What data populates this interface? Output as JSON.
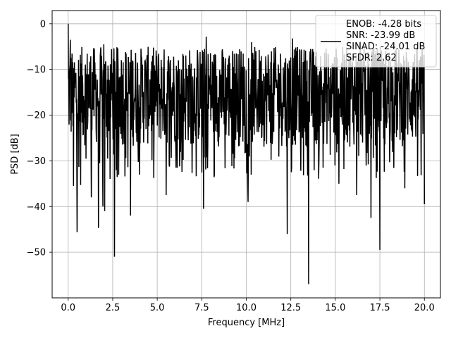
{
  "chart_data": {
    "type": "line",
    "xlabel": "Frequency [MHz]",
    "ylabel": "PSD [dB]",
    "xlim": [
      -0.9,
      20.9
    ],
    "ylim": [
      -60,
      2.9
    ],
    "x_ticks": [
      0.0,
      2.5,
      5.0,
      7.5,
      10.0,
      12.5,
      15.0,
      17.5,
      20.0
    ],
    "x_tick_labels": [
      "0.0",
      "2.5",
      "5.0",
      "7.5",
      "10.0",
      "12.5",
      "15.0",
      "17.5",
      "20.0"
    ],
    "y_ticks": [
      0,
      -10,
      -20,
      -30,
      -40,
      -50
    ],
    "y_tick_labels": [
      "0",
      "−10",
      "−20",
      "−30",
      "−40",
      "−50"
    ],
    "grid": true,
    "legend_position": "top-right",
    "legend_lines": [
      "ENOB: -4.28 bits",
      "SNR: -23.99 dB",
      "SINAD: -24.01 dB",
      "SFDR: 2.62"
    ],
    "series": [
      {
        "color": "#000000",
        "note": "dense noise spectrum; band between ~-5 dB and ~-28 dB",
        "x_range": [
          0.0,
          20.0
        ],
        "points_count": 1200,
        "band_top": -5,
        "band_bottom": -27,
        "peaks": [
          {
            "x": 0.0,
            "y": 0.0
          },
          {
            "x": 0.12,
            "y": -3.5
          },
          {
            "x": 7.75,
            "y": -2.8
          },
          {
            "x": 12.6,
            "y": -3.2
          },
          {
            "x": 10.3,
            "y": -4.0
          },
          {
            "x": 2.0,
            "y": -4.5
          },
          {
            "x": 16.4,
            "y": -3.8
          }
        ],
        "dips": [
          {
            "x": 0.3,
            "y": -35.5
          },
          {
            "x": 0.5,
            "y": -45.6
          },
          {
            "x": 0.7,
            "y": -35.3
          },
          {
            "x": 1.3,
            "y": -38.0
          },
          {
            "x": 1.7,
            "y": -44.7
          },
          {
            "x": 1.95,
            "y": -40.0
          },
          {
            "x": 2.05,
            "y": -41.0
          },
          {
            "x": 2.6,
            "y": -51.0
          },
          {
            "x": 3.5,
            "y": -42.0
          },
          {
            "x": 5.5,
            "y": -37.5
          },
          {
            "x": 7.6,
            "y": -40.5
          },
          {
            "x": 10.1,
            "y": -39.0
          },
          {
            "x": 12.3,
            "y": -46.0
          },
          {
            "x": 13.5,
            "y": -57.0
          },
          {
            "x": 15.2,
            "y": -35.0
          },
          {
            "x": 16.2,
            "y": -37.5
          },
          {
            "x": 17.0,
            "y": -42.5
          },
          {
            "x": 17.5,
            "y": -49.5
          },
          {
            "x": 18.9,
            "y": -36.0
          },
          {
            "x": 20.0,
            "y": -39.5
          }
        ]
      }
    ]
  },
  "colors": {
    "line": "#000000",
    "grid": "#b0b0b0",
    "axes": "#000000",
    "legend_border": "#cccccc"
  }
}
